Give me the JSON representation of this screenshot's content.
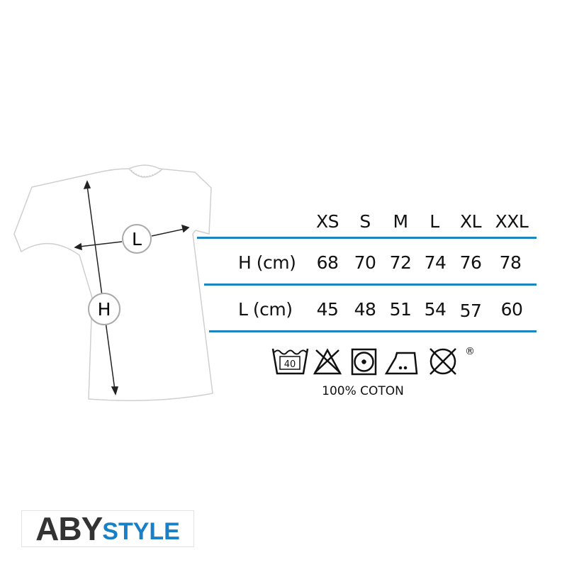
{
  "diagram": {
    "length_marker": "L",
    "height_marker": "H"
  },
  "table": {
    "headers": [
      "XS",
      "S",
      "M",
      "L",
      "XL",
      "XXL"
    ],
    "rows": [
      {
        "label": "H (cm)",
        "values": [
          "68",
          "70",
          "72",
          "74",
          "76",
          "78"
        ]
      },
      {
        "label": "L (cm)",
        "values": [
          "45",
          "48",
          "51",
          "54",
          "57",
          "60"
        ]
      }
    ],
    "line_color": "#1a86bd"
  },
  "care_icons": [
    "wash-40-icon",
    "no-bleach-icon",
    "tumble-dry-icon",
    "iron-medium-icon",
    "no-dry-clean-icon"
  ],
  "care_wash_temp": "40",
  "registered_mark": "®",
  "composition": "100% COTON",
  "logo": {
    "part1": "ABY",
    "part2": "STYLE",
    "colors": {
      "part1": "#333333",
      "part2": "#1a7fc4"
    }
  }
}
